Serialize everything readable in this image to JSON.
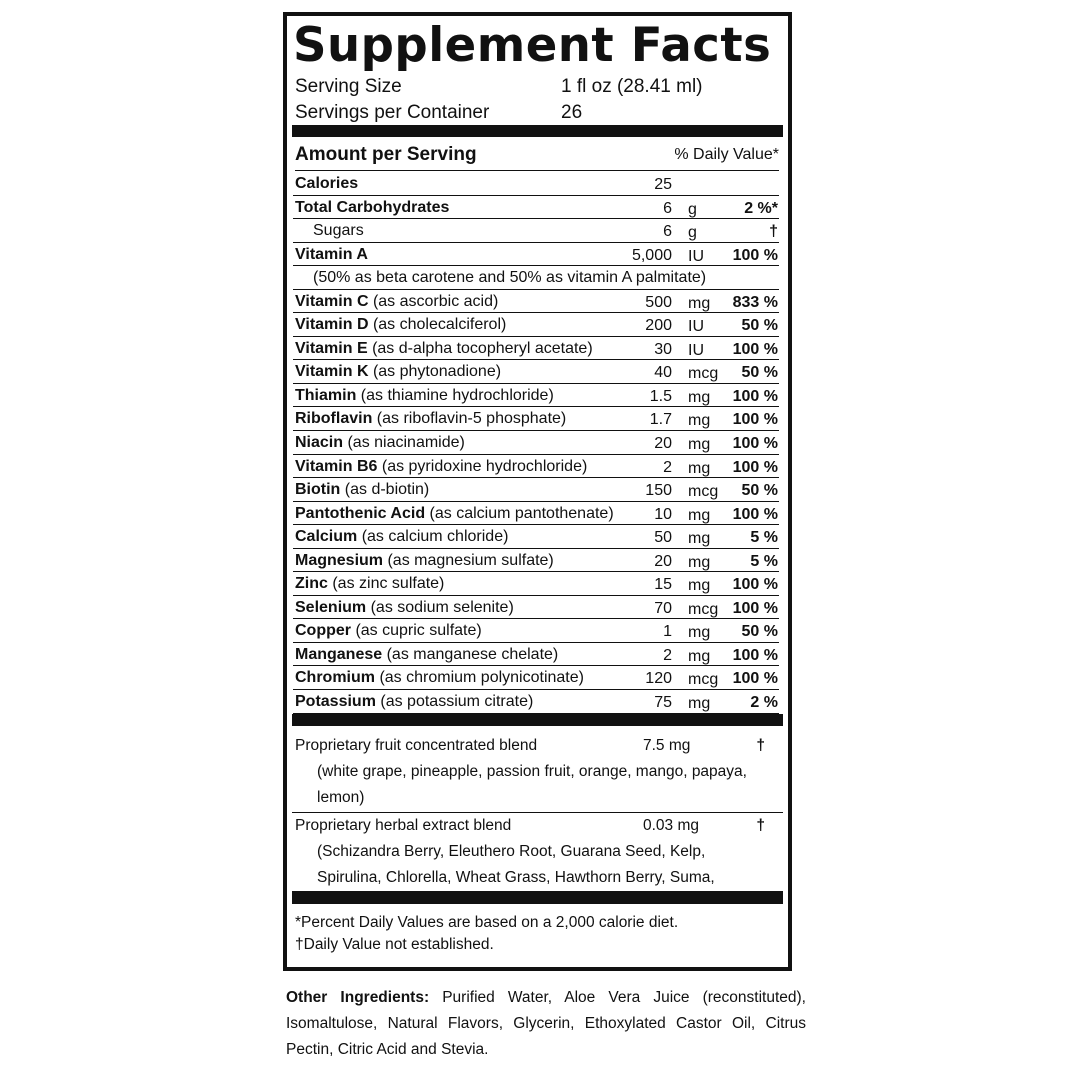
{
  "title": "Supplement Facts",
  "serving_size": {
    "label": "Serving Size",
    "value": "1 fl oz (28.41 ml)"
  },
  "servings_per_container": {
    "label": "Servings per Container",
    "value": "26"
  },
  "header": {
    "amount": "Amount per Serving",
    "dv": "% Daily Value*"
  },
  "rows": [
    {
      "name": "Calories",
      "source": "",
      "amount": "25",
      "unit": "",
      "dv": "",
      "type": "bold"
    },
    {
      "name": "Total Carbohydrates",
      "source": "",
      "amount": "6",
      "unit": "g",
      "dv": "2 %*",
      "type": "bold"
    },
    {
      "name": "Sugars",
      "source": "",
      "amount": "6",
      "unit": "g",
      "dv": "†",
      "type": "indent"
    },
    {
      "name": "Vitamin A",
      "source": "",
      "amount": "5,000",
      "unit": "IU",
      "dv": "100 %",
      "type": "bold"
    },
    {
      "name": "",
      "source": "(50% as beta carotene and 50% as vitamin A palmitate)",
      "amount": "",
      "unit": "",
      "dv": "",
      "type": "note"
    },
    {
      "name": "Vitamin C",
      "source": "(as ascorbic acid)",
      "amount": "500",
      "unit": "mg",
      "dv": "833 %",
      "type": "bold"
    },
    {
      "name": "Vitamin D",
      "source": "(as cholecalciferol)",
      "amount": "200",
      "unit": "IU",
      "dv": "50 %",
      "type": "bold"
    },
    {
      "name": "Vitamin E",
      "source": "(as d-alpha tocopheryl acetate)",
      "amount": "30",
      "unit": "IU",
      "dv": "100 %",
      "type": "bold"
    },
    {
      "name": "Vitamin K",
      "source": "(as phytonadione)",
      "amount": "40",
      "unit": "mcg",
      "dv": "50 %",
      "type": "bold"
    },
    {
      "name": "Thiamin",
      "source": "(as thiamine hydrochloride)",
      "amount": "1.5",
      "unit": "mg",
      "dv": "100 %",
      "type": "bold"
    },
    {
      "name": "Riboflavin",
      "source": "(as riboflavin-5 phosphate)",
      "amount": "1.7",
      "unit": "mg",
      "dv": "100 %",
      "type": "bold"
    },
    {
      "name": "Niacin",
      "source": "(as niacinamide)",
      "amount": "20",
      "unit": "mg",
      "dv": "100 %",
      "type": "bold"
    },
    {
      "name": "Vitamin B6",
      "source": "(as pyridoxine hydrochloride)",
      "amount": "2",
      "unit": "mg",
      "dv": "100 %",
      "type": "bold"
    },
    {
      "name": "Biotin",
      "source": "(as d-biotin)",
      "amount": "150",
      "unit": "mcg",
      "dv": "50 %",
      "type": "bold"
    },
    {
      "name": "Pantothenic Acid",
      "source": "(as calcium pantothenate)",
      "amount": "10",
      "unit": "mg",
      "dv": "100 %",
      "type": "bold"
    },
    {
      "name": "Calcium",
      "source": "(as calcium chloride)",
      "amount": "50",
      "unit": "mg",
      "dv": "5 %",
      "type": "bold"
    },
    {
      "name": "Magnesium",
      "source": "(as magnesium sulfate)",
      "amount": "20",
      "unit": "mg",
      "dv": "5 %",
      "type": "bold"
    },
    {
      "name": "Zinc",
      "source": "(as zinc sulfate)",
      "amount": "15",
      "unit": "mg",
      "dv": "100 %",
      "type": "bold"
    },
    {
      "name": "Selenium",
      "source": "(as sodium selenite)",
      "amount": "70",
      "unit": "mcg",
      "dv": "100 %",
      "type": "bold"
    },
    {
      "name": "Copper",
      "source": "(as cupric sulfate)",
      "amount": "1",
      "unit": "mg",
      "dv": "50 %",
      "type": "bold"
    },
    {
      "name": "Manganese",
      "source": "(as manganese chelate)",
      "amount": "2",
      "unit": "mg",
      "dv": "100 %",
      "type": "bold"
    },
    {
      "name": "Chromium",
      "source": "(as chromium polynicotinate)",
      "amount": "120",
      "unit": "mcg",
      "dv": "100 %",
      "type": "bold"
    },
    {
      "name": "Potassium",
      "source": "(as potassium citrate)",
      "amount": "75",
      "unit": "mg",
      "dv": "2 %",
      "type": "bold"
    }
  ],
  "blends": [
    {
      "name": "Proprietary fruit concentrated blend",
      "amount": "7.5  mg",
      "dv": "†",
      "ingredients": "(white grape, pineapple, passion fruit, orange, mango, papaya, lemon)"
    },
    {
      "name": "Proprietary herbal extract blend",
      "amount": "0.03  mg",
      "dv": "†",
      "ingredients": "(Schizandra Berry, Eleuthero Root, Guarana Seed, Kelp, Spirulina, Chlorella, Wheat Grass, Hawthorn Berry, Suma,"
    }
  ],
  "footnotes": [
    "*Percent Daily Values are based on a 2,000 calorie diet.",
    "†Daily Value not established."
  ],
  "other_ingredients": {
    "label": "Other Ingredients:",
    "text": " Purified Water, Aloe Vera Juice (reconstituted), Isomaltulose, Natural Flavors, Glycerin, Ethoxylated Castor Oil, Citrus Pectin, Citric Acid and Stevia."
  }
}
